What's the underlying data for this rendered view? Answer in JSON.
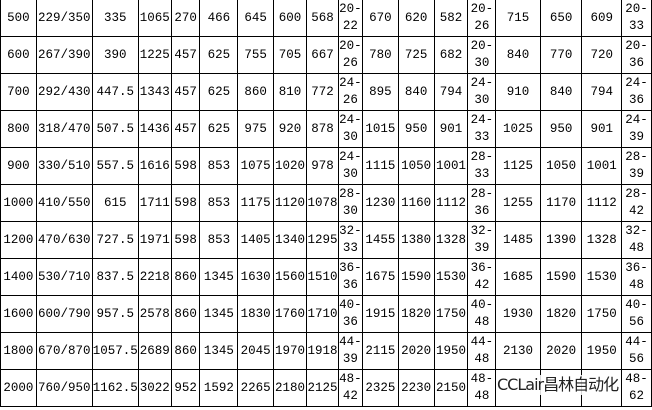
{
  "table": {
    "rows": [
      [
        "500",
        "229/350",
        "335",
        "1065",
        "270",
        "466",
        "645",
        "600",
        "568",
        "20-\n22",
        "670",
        "620",
        "582",
        "20-\n26",
        "715",
        "650",
        "609",
        "20-\n33"
      ],
      [
        "600",
        "267/390",
        "390",
        "1225",
        "457",
        "625",
        "755",
        "705",
        "667",
        "20-\n26",
        "780",
        "725",
        "682",
        "20-\n30",
        "840",
        "770",
        "720",
        "20-\n36"
      ],
      [
        "700",
        "292/430",
        "447.5",
        "1343",
        "457",
        "625",
        "860",
        "810",
        "772",
        "24-\n26",
        "895",
        "840",
        "794",
        "24-\n30",
        "910",
        "840",
        "794",
        "24-\n36"
      ],
      [
        "800",
        "318/470",
        "507.5",
        "1436",
        "457",
        "625",
        "975",
        "920",
        "878",
        "24-\n30",
        "1015",
        "950",
        "901",
        "24-\n33",
        "1025",
        "950",
        "901",
        "24-\n39"
      ],
      [
        "900",
        "330/510",
        "557.5",
        "1616",
        "598",
        "853",
        "1075",
        "1020",
        "978",
        "24-\n30",
        "1115",
        "1050",
        "1001",
        "28-\n33",
        "1125",
        "1050",
        "1001",
        "28-\n39"
      ],
      [
        "1000",
        "410/550",
        "615",
        "1711",
        "598",
        "853",
        "1175",
        "1120",
        "1078",
        "28-\n30",
        "1230",
        "1160",
        "1112",
        "28-\n36",
        "1255",
        "1170",
        "1112",
        "28-\n42"
      ],
      [
        "1200",
        "470/630",
        "727.5",
        "1971",
        "598",
        "853",
        "1405",
        "1340",
        "1295",
        "32-\n33",
        "1455",
        "1380",
        "1328",
        "32-\n39",
        "1485",
        "1390",
        "1328",
        "32-\n48"
      ],
      [
        "1400",
        "530/710",
        "837.5",
        "2218",
        "860",
        "1345",
        "1630",
        "1560",
        "1510",
        "36-\n36",
        "1675",
        "1590",
        "1530",
        "36-\n42",
        "1685",
        "1590",
        "1530",
        "36-\n48"
      ],
      [
        "1600",
        "600/790",
        "957.5",
        "2578",
        "860",
        "1345",
        "1830",
        "1760",
        "1710",
        "40-\n36",
        "1915",
        "1820",
        "1750",
        "40-\n48",
        "1930",
        "1820",
        "1750",
        "40-\n56"
      ],
      [
        "1800",
        "670/870",
        "1057.5",
        "2689",
        "860",
        "1345",
        "2045",
        "1970",
        "1918",
        "44-\n39",
        "2115",
        "2020",
        "1950",
        "44-\n48",
        "2130",
        "2020",
        "1950",
        "44-\n56"
      ],
      [
        "2000",
        "760/950",
        "1162.5",
        "3022",
        "952",
        "1592",
        "2265",
        "2180",
        "2125",
        "48-\n42",
        "2325",
        "2230",
        "2150",
        "48-\n48",
        "",
        "",
        "",
        "48-\n62"
      ]
    ]
  },
  "watermark": "CCLair昌林自动化"
}
